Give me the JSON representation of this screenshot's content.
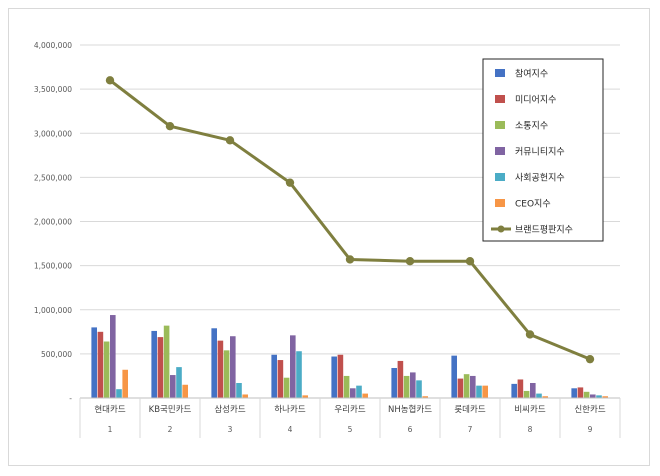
{
  "chart_data": {
    "type": "bar",
    "ylim": [
      0,
      4000000
    ],
    "y_ticks": [
      "-",
      "500,000",
      "1,000,000",
      "1,500,000",
      "2,000,000",
      "2,500,000",
      "3,000,000",
      "3,500,000",
      "4,000,000"
    ],
    "grid": true,
    "legend_position": "top-right",
    "categories": [
      "현대카드",
      "KB국민카드",
      "삼성카드",
      "하나카드",
      "우리카드",
      "NH농협카드",
      "롯데카드",
      "비씨카드",
      "신한카드"
    ],
    "category_numbers": [
      "1",
      "2",
      "3",
      "4",
      "5",
      "6",
      "7",
      "8",
      "9"
    ],
    "series": [
      {
        "name": "참여지수",
        "color": "#4472c4",
        "values": [
          800000,
          760000,
          790000,
          490000,
          470000,
          340000,
          480000,
          160000,
          110000
        ]
      },
      {
        "name": "미디어지수",
        "color": "#c0504d",
        "values": [
          750000,
          690000,
          650000,
          430000,
          490000,
          420000,
          220000,
          210000,
          120000
        ]
      },
      {
        "name": "소통지수",
        "color": "#9bbb59",
        "values": [
          640000,
          820000,
          540000,
          230000,
          250000,
          250000,
          270000,
          80000,
          70000
        ]
      },
      {
        "name": "커뮤니티지수",
        "color": "#8064a2",
        "values": [
          940000,
          260000,
          700000,
          710000,
          110000,
          290000,
          250000,
          170000,
          40000
        ]
      },
      {
        "name": "사회공헌지수",
        "color": "#4bacc6",
        "values": [
          100000,
          350000,
          170000,
          530000,
          140000,
          200000,
          140000,
          50000,
          30000
        ]
      },
      {
        "name": "CEO지수",
        "color": "#f79646",
        "values": [
          320000,
          150000,
          40000,
          30000,
          50000,
          20000,
          140000,
          20000,
          20000
        ]
      }
    ],
    "line_series": {
      "name": "브랜드평판지수",
      "color": "#7f7f3f",
      "values": [
        3600000,
        3080000,
        2920000,
        2440000,
        1570000,
        1550000,
        1550000,
        720000,
        440000
      ]
    }
  }
}
